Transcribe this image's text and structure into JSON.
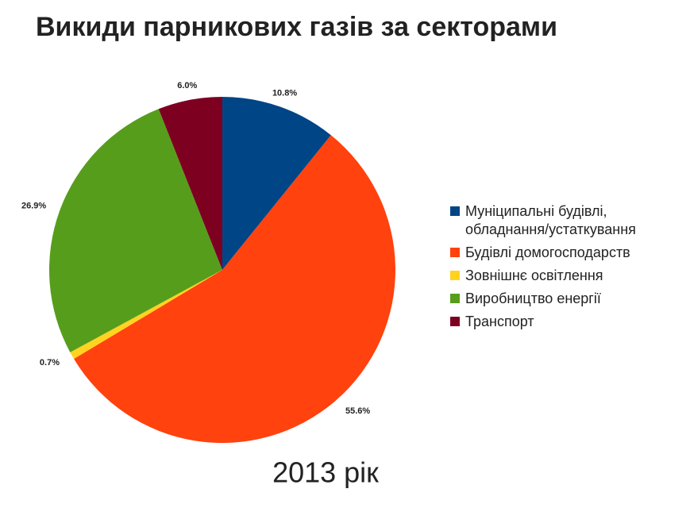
{
  "chart_data": {
    "type": "pie",
    "title": "Викиди парникових газів за секторами",
    "subtitle": "2013 рік",
    "categories": [
      "Муніципальні будівлі, обладнання/устаткування",
      "Будівлі домогосподарств",
      "Зовнішнє освітлення",
      "Виробництво енергії",
      "Транспорт"
    ],
    "values": [
      10.8,
      55.6,
      0.7,
      26.9,
      6.0
    ],
    "value_labels": [
      "10.8%",
      "55.6%",
      "0.7%",
      "26.9%",
      "6.0%"
    ],
    "colors": [
      "#004586",
      "#ff420e",
      "#ffd320",
      "#579d1c",
      "#7e0021"
    ],
    "legend": "right"
  }
}
